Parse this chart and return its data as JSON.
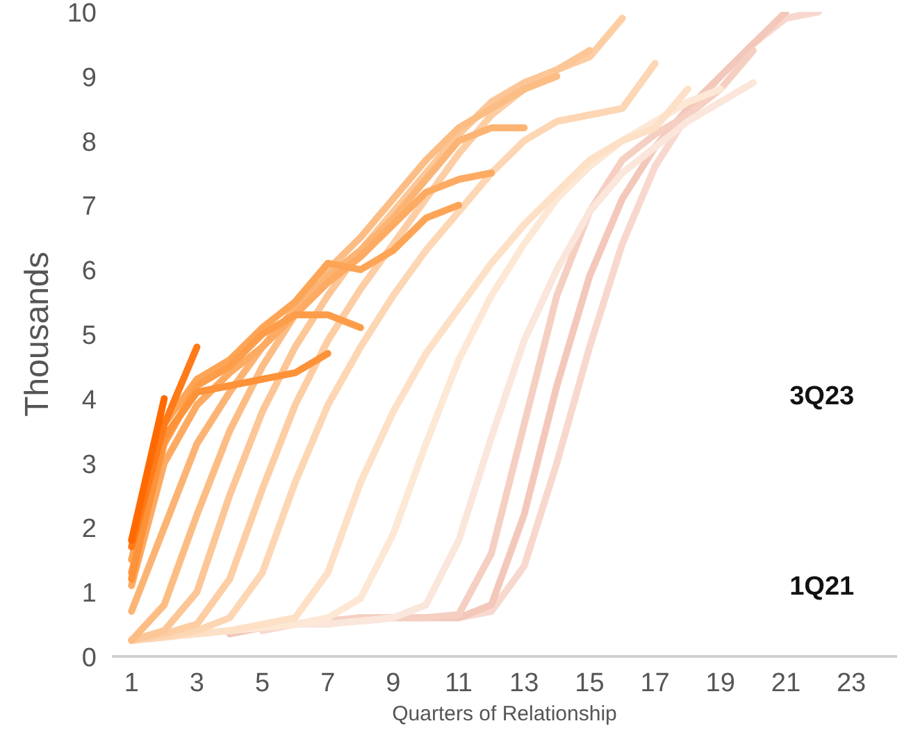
{
  "chart_data": {
    "type": "line",
    "xlabel": "Quarters of Relationship",
    "ylabel": "Thousands",
    "xlim": [
      0.4,
      24.4
    ],
    "ylim": [
      0,
      10
    ],
    "xticks": [
      1,
      3,
      5,
      7,
      9,
      11,
      13,
      15,
      17,
      19,
      21,
      23
    ],
    "yticks": [
      0,
      1,
      2,
      3,
      4,
      5,
      6,
      7,
      8,
      9,
      10
    ],
    "grid": false,
    "marker": "none",
    "line_style": "solid",
    "annotations": [
      "3Q23",
      "1Q21"
    ],
    "series": [
      {
        "color": "#f8d8ce",
        "x": [
          5,
          6,
          7,
          8,
          9,
          10,
          11,
          12,
          13,
          14,
          15,
          16,
          17,
          18,
          19,
          20,
          21,
          22
        ],
        "values": [
          0.4,
          0.5,
          0.55,
          0.6,
          0.6,
          0.6,
          0.6,
          0.7,
          1.4,
          3.0,
          4.8,
          6.4,
          7.6,
          8.4,
          9.0,
          9.5,
          9.9,
          10
        ]
      },
      {
        "color": "#f3c8bb",
        "x": [
          4,
          5,
          6,
          7,
          8,
          9,
          10,
          11,
          12,
          13,
          14,
          15,
          16,
          17,
          18,
          19,
          20,
          21
        ],
        "values": [
          0.35,
          0.45,
          0.5,
          0.55,
          0.55,
          0.6,
          0.6,
          0.6,
          0.8,
          2.2,
          4.2,
          5.9,
          7.1,
          7.9,
          8.5,
          9.0,
          9.5,
          10
        ]
      },
      {
        "color": "#f5cfc2",
        "x": [
          4,
          5,
          6,
          7,
          8,
          9,
          10,
          11,
          12,
          13,
          14,
          15,
          16,
          17,
          18,
          19,
          20
        ],
        "values": [
          0.4,
          0.45,
          0.5,
          0.55,
          0.6,
          0.6,
          0.6,
          0.65,
          1.6,
          3.6,
          5.6,
          6.9,
          7.7,
          8.1,
          8.4,
          8.8,
          9.4
        ]
      },
      {
        "color": "#fbe6dc",
        "x": [
          3,
          4,
          5,
          6,
          7,
          8,
          9,
          10,
          11,
          12,
          13,
          14,
          15,
          16,
          17,
          18,
          19,
          20
        ],
        "values": [
          0.35,
          0.4,
          0.45,
          0.5,
          0.5,
          0.55,
          0.6,
          0.8,
          1.8,
          3.4,
          4.9,
          6.0,
          6.9,
          7.5,
          7.9,
          8.3,
          8.6,
          8.9
        ]
      },
      {
        "color": "#fde8d6",
        "x": [
          1,
          2,
          3,
          4,
          5,
          6,
          7,
          8,
          9,
          10,
          11,
          12,
          13,
          14,
          15,
          16,
          17,
          18,
          19
        ],
        "values": [
          0.25,
          0.3,
          0.35,
          0.4,
          0.45,
          0.5,
          0.6,
          0.9,
          1.9,
          3.3,
          4.6,
          5.6,
          6.4,
          7.1,
          7.6,
          8.0,
          8.3,
          8.6,
          8.8
        ]
      },
      {
        "color": "#fde0c6",
        "x": [
          1,
          2,
          3,
          4,
          5,
          6,
          7,
          8,
          9,
          10,
          11,
          12,
          13,
          14,
          15,
          16,
          17,
          18
        ],
        "values": [
          0.25,
          0.3,
          0.35,
          0.4,
          0.5,
          0.6,
          1.3,
          2.7,
          3.8,
          4.7,
          5.4,
          6.1,
          6.7,
          7.2,
          7.7,
          8.0,
          8.2,
          8.8
        ]
      },
      {
        "color": "#fdd6b4",
        "x": [
          1,
          2,
          3,
          4,
          5,
          6,
          7,
          8,
          9,
          10,
          11,
          12,
          13,
          14,
          15,
          16,
          17
        ],
        "values": [
          0.25,
          0.3,
          0.4,
          0.6,
          1.3,
          2.7,
          3.9,
          4.8,
          5.6,
          6.3,
          6.9,
          7.5,
          8.0,
          8.3,
          8.4,
          8.5,
          9.2
        ]
      },
      {
        "color": "#fdcda4",
        "x": [
          1,
          2,
          3,
          4,
          5,
          6,
          7,
          8,
          9,
          10,
          11,
          12,
          13,
          14,
          15,
          16
        ],
        "values": [
          0.25,
          0.35,
          0.5,
          1.2,
          2.6,
          3.9,
          4.9,
          5.7,
          6.4,
          7.1,
          7.8,
          8.4,
          8.8,
          9.1,
          9.3,
          9.9
        ]
      },
      {
        "color": "#fcc696",
        "x": [
          1,
          2,
          3,
          4,
          5,
          6,
          7,
          8,
          9,
          10,
          11,
          12,
          13,
          14,
          15
        ],
        "values": [
          0.25,
          0.4,
          1.0,
          2.5,
          3.8,
          4.8,
          5.6,
          6.3,
          6.9,
          7.5,
          8.1,
          8.6,
          8.9,
          9.1,
          9.4
        ]
      },
      {
        "color": "#fcbd85",
        "x": [
          1,
          2,
          3,
          4,
          5,
          6,
          7,
          8,
          9,
          10,
          11,
          12,
          13,
          14
        ],
        "values": [
          0.25,
          0.8,
          2.2,
          3.5,
          4.5,
          5.3,
          6.0,
          6.5,
          7.1,
          7.7,
          8.2,
          8.5,
          8.8,
          9.0
        ]
      },
      {
        "color": "#fcb474",
        "x": [
          1,
          2,
          3,
          4,
          5,
          6,
          7,
          8,
          9,
          10,
          11,
          12,
          13
        ],
        "values": [
          0.7,
          2.0,
          3.3,
          4.1,
          4.8,
          5.4,
          5.9,
          6.3,
          6.8,
          7.4,
          8.0,
          8.2,
          8.2
        ]
      },
      {
        "color": "#fdaa62",
        "x": [
          1,
          2,
          3,
          4,
          5,
          6,
          7,
          8,
          9,
          10,
          11,
          12
        ],
        "values": [
          1.1,
          3.0,
          3.9,
          4.4,
          4.8,
          5.3,
          5.8,
          6.2,
          6.7,
          7.2,
          7.4,
          7.5
        ]
      },
      {
        "color": "#fda556",
        "x": [
          1,
          2,
          3,
          4,
          5,
          6,
          7,
          8,
          9,
          10,
          11
        ],
        "values": [
          1.5,
          3.6,
          4.3,
          4.6,
          5.1,
          5.5,
          6.1,
          6.0,
          6.3,
          6.8,
          7.0
        ]
      },
      {
        "color": "#fd9d4a",
        "x": [
          1,
          2,
          3,
          4,
          5,
          6,
          7,
          8
        ],
        "values": [
          1.3,
          3.3,
          4.2,
          4.5,
          5.0,
          5.3,
          5.3,
          5.1
        ]
      },
      {
        "color": "#fd9238",
        "x": [
          1,
          2,
          3,
          4,
          5,
          6,
          7
        ],
        "values": [
          1.2,
          3.4,
          4.1,
          4.2,
          4.3,
          4.4,
          4.7
        ]
      },
      {
        "color": "#ff7a18",
        "x": [
          1,
          2,
          3
        ],
        "values": [
          1.7,
          3.6,
          4.8
        ]
      },
      {
        "color": "#ff6a00",
        "x": [
          1,
          2
        ],
        "values": [
          1.8,
          4.0
        ]
      }
    ]
  }
}
